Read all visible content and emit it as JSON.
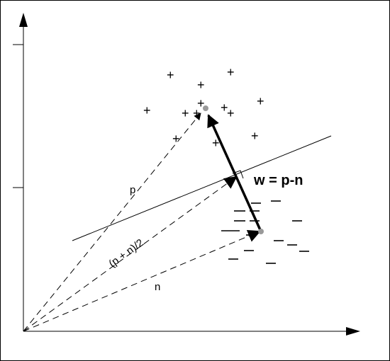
{
  "labels": {
    "p": "p",
    "n": "n",
    "midpoint": "(p + n)/2",
    "w": "w = p-n"
  },
  "symbols": {
    "positive": "+",
    "negative": "—"
  },
  "positive_count": 15,
  "negative_count": 16,
  "colors": {
    "stroke": "#000000",
    "centroid": "#999999",
    "background": "#ffffff"
  }
}
